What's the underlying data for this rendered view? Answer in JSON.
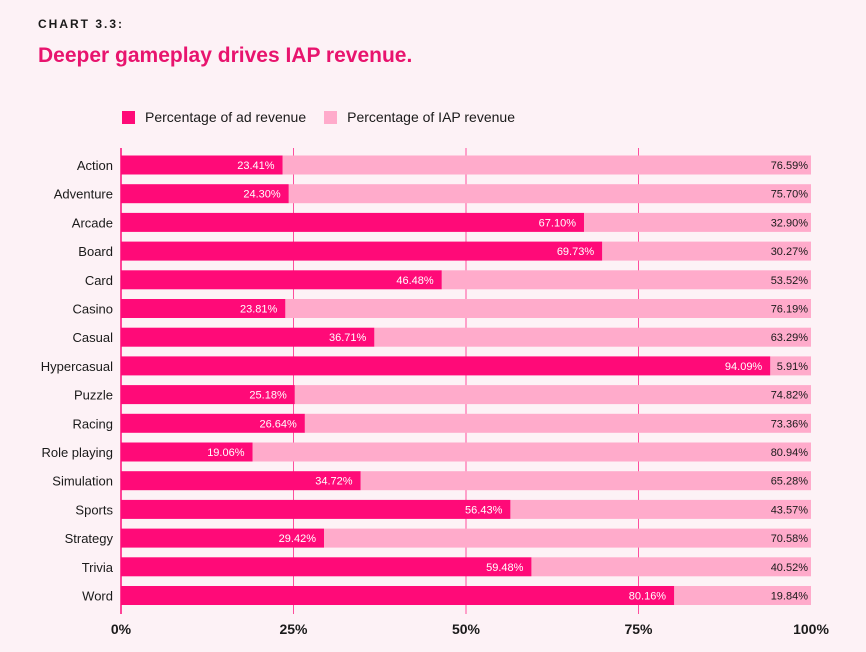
{
  "header": {
    "kicker": "CHART 3.3:",
    "title": "Deeper gameplay drives IAP revenue."
  },
  "colors": {
    "ad": "#ff0a78",
    "iap": "#ffabcb",
    "title": "#e8146e",
    "grid": "#ff0a78",
    "text": "#1a1a1a"
  },
  "chart_data": {
    "type": "bar",
    "orientation": "horizontal",
    "stacked": true,
    "title": "Deeper gameplay drives IAP revenue.",
    "xlabel": "",
    "ylabel": "",
    "xlim": [
      0,
      100
    ],
    "xticks": [
      "0%",
      "25%",
      "50%",
      "75%",
      "100%"
    ],
    "legend": [
      "Percentage of ad revenue",
      "Percentage of IAP revenue"
    ],
    "legend_position": "top-left",
    "categories": [
      "Action",
      "Adventure",
      "Arcade",
      "Board",
      "Card",
      "Casino",
      "Casual",
      "Hypercasual",
      "Puzzle",
      "Racing",
      "Role playing",
      "Simulation",
      "Sports",
      "Strategy",
      "Trivia",
      "Word"
    ],
    "series": [
      {
        "name": "Percentage of ad revenue",
        "values": [
          23.41,
          24.3,
          67.1,
          69.73,
          46.48,
          23.81,
          36.71,
          94.09,
          25.18,
          26.64,
          19.06,
          34.72,
          56.43,
          29.42,
          59.48,
          80.16
        ],
        "labels": [
          "23.41%",
          "24.30%",
          "67.10%",
          "69.73%",
          "46.48%",
          "23.81%",
          "36.71%",
          "94.09%",
          "25.18%",
          "26.64%",
          "19.06%",
          "34.72%",
          "56.43%",
          "29.42%",
          "59.48%",
          "80.16%"
        ]
      },
      {
        "name": "Percentage of IAP revenue",
        "values": [
          76.59,
          75.7,
          32.9,
          30.27,
          53.52,
          76.19,
          63.29,
          5.91,
          74.82,
          73.36,
          80.94,
          65.28,
          43.57,
          70.58,
          40.52,
          19.84
        ],
        "labels": [
          "76.59%",
          "75.70%",
          "32.90%",
          "30.27%",
          "53.52%",
          "76.19%",
          "63.29%",
          "5.91%",
          "74.82%",
          "73.36%",
          "80.94%",
          "65.28%",
          "43.57%",
          "70.58%",
          "40.52%",
          "19.84%"
        ]
      }
    ]
  }
}
